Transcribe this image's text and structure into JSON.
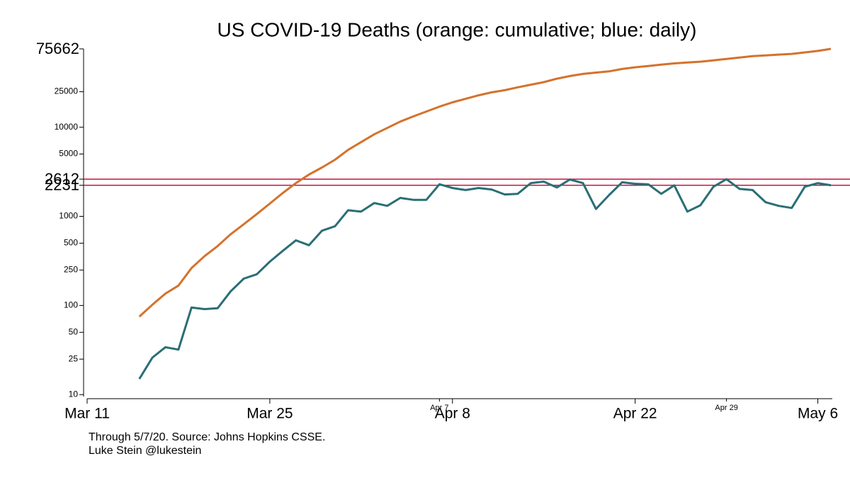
{
  "chart_data": {
    "type": "line",
    "title": "US COVID-19 Deaths (orange: cumulative; blue: daily)",
    "notes": [
      "Through 5/7/20. Source: Johns Hopkins CSSE.",
      "Luke Stein @lukestein"
    ],
    "log_y": true,
    "x": [
      "Mar 15",
      "Mar 16",
      "Mar 17",
      "Mar 18",
      "Mar 19",
      "Mar 20",
      "Mar 21",
      "Mar 22",
      "Mar 23",
      "Mar 24",
      "Mar 25",
      "Mar 26",
      "Mar 27",
      "Mar 28",
      "Mar 29",
      "Mar 30",
      "Mar 31",
      "Apr 1",
      "Apr 2",
      "Apr 3",
      "Apr 4",
      "Apr 5",
      "Apr 6",
      "Apr 7",
      "Apr 8",
      "Apr 9",
      "Apr 10",
      "Apr 11",
      "Apr 12",
      "Apr 13",
      "Apr 14",
      "Apr 15",
      "Apr 16",
      "Apr 17",
      "Apr 18",
      "Apr 19",
      "Apr 20",
      "Apr 21",
      "Apr 22",
      "Apr 23",
      "Apr 24",
      "Apr 25",
      "Apr 26",
      "Apr 27",
      "Apr 28",
      "Apr 29",
      "Apr 30",
      "May 1",
      "May 2",
      "May 3",
      "May 4",
      "May 5",
      "May 6",
      "May 7"
    ],
    "series": [
      {
        "name": "cumulative",
        "color": "#d4722c",
        "values": [
          75,
          102,
          136,
          167,
          263,
          358,
          464,
          630,
          815,
          1060,
          1390,
          1830,
          2360,
          2940,
          3530,
          4320,
          5560,
          6800,
          8320,
          9800,
          11550,
          13200,
          15000,
          17000,
          19000,
          20800,
          22800,
          24600,
          26000,
          28000,
          30000,
          32000,
          35000,
          37500,
          39600,
          41000,
          42300,
          45000,
          47000,
          48500,
          50300,
          52000,
          53200,
          54300,
          56300,
          58300,
          60400,
          62700,
          64000,
          65300,
          66500,
          69000,
          71700,
          75662
        ]
      },
      {
        "name": "daily",
        "color": "#2a6e76",
        "values": [
          15,
          26,
          34,
          32,
          95,
          91,
          93,
          144,
          200,
          224,
          310,
          410,
          538,
          474,
          690,
          775,
          1170,
          1130,
          1410,
          1310,
          1610,
          1530,
          1530,
          2290,
          2080,
          1970,
          2080,
          2000,
          1760,
          1790,
          2360,
          2450,
          2110,
          2590,
          2360,
          1210,
          1730,
          2410,
          2320,
          2290,
          1790,
          2230,
          1130,
          1330,
          2150,
          2612,
          2030,
          1970,
          1440,
          1310,
          1240,
          2150,
          2360,
          2231
        ]
      }
    ],
    "xlim": [
      "Mar 11",
      "May 7"
    ],
    "xticks": [
      "Mar 11",
      "Mar 25",
      "Apr 8",
      "Apr 22",
      "May 6"
    ],
    "xticks_minor": [
      "Apr 7",
      "Apr 29"
    ],
    "ylim": [
      9,
      75662
    ],
    "yticks": [
      10,
      25,
      50,
      100,
      250,
      500,
      1000,
      2231,
      2612,
      5000,
      10000,
      25000,
      75662
    ],
    "reference_lines": [
      2231,
      2612
    ],
    "reference_color": "#c0143c"
  }
}
